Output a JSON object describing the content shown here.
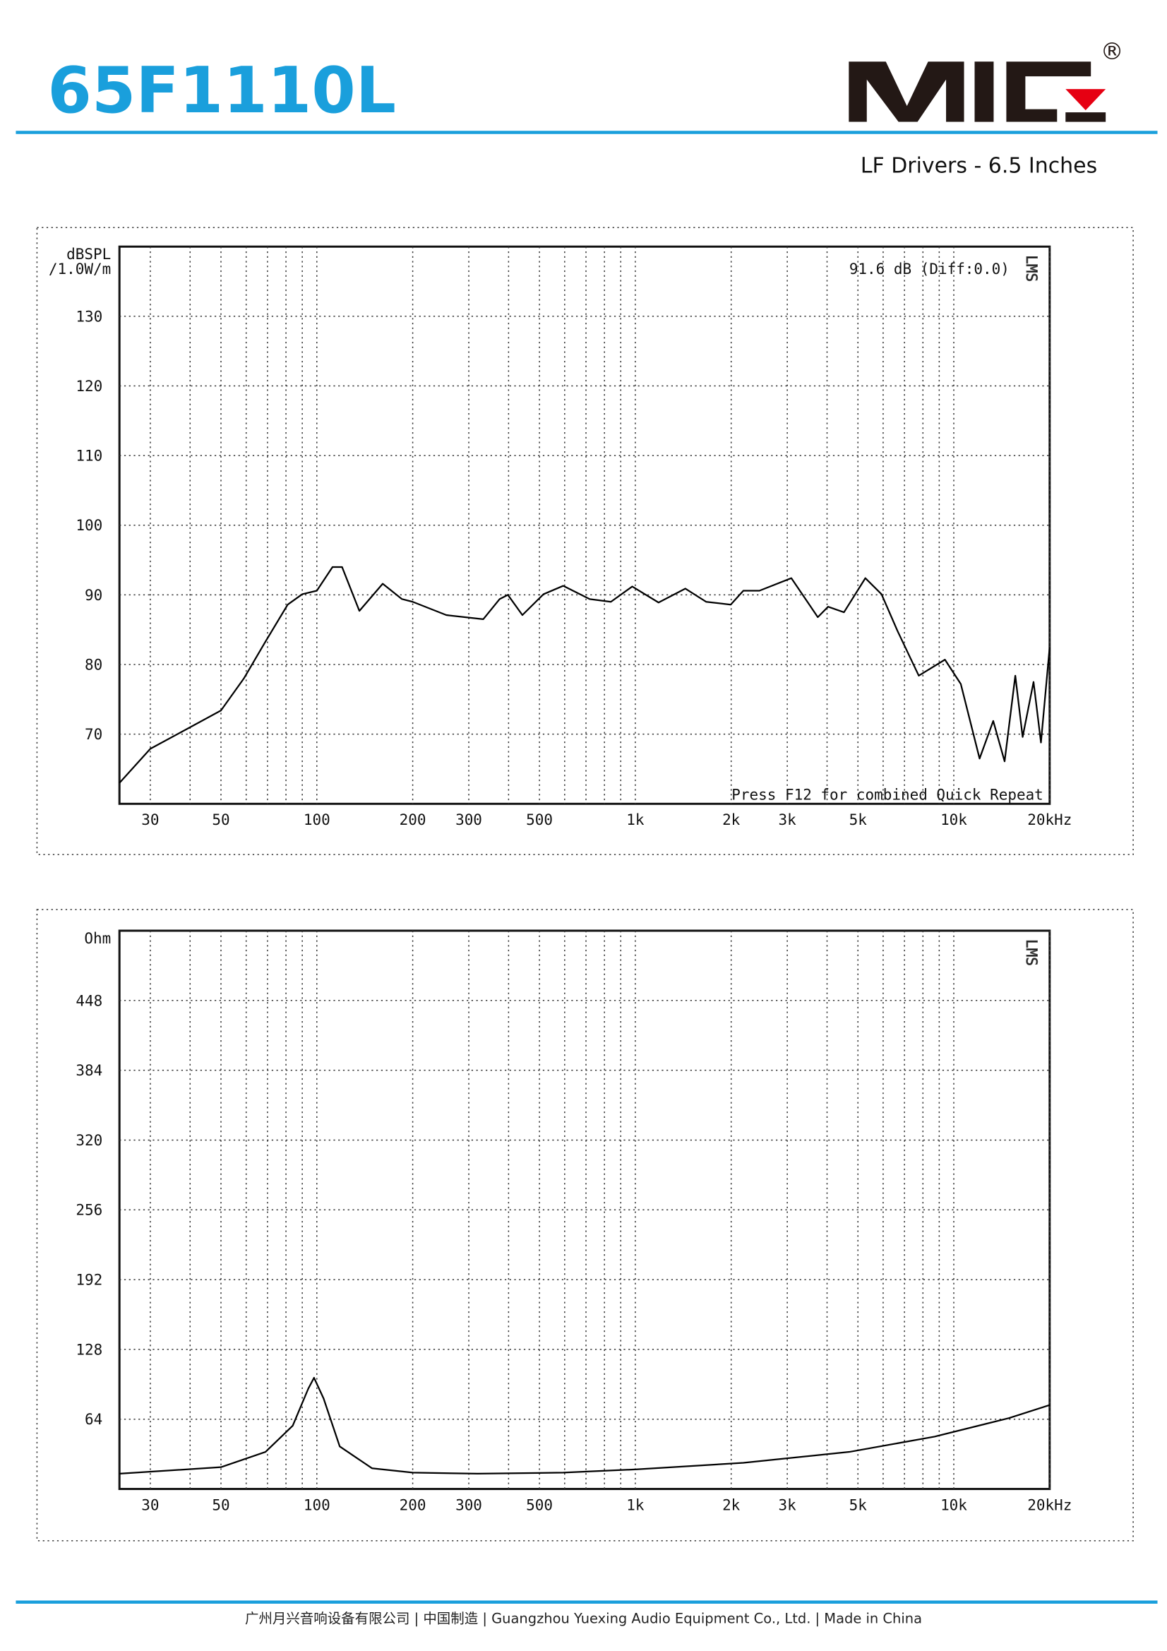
{
  "header": {
    "title": "65F1110L",
    "registered": "®",
    "subtitle": "LF Drivers - 6.5 Inches"
  },
  "footer": "广州月兴音响设备有限公司 | 中国制造 | Guangzhou Yuexing Audio Equipment Co., Ltd. | Made in China",
  "chart_data": [
    {
      "type": "line",
      "log_x": true,
      "grid": true,
      "color": "#000000",
      "y_unit": [
        "dBSPL",
        "/1.0W/m"
      ],
      "watermark": "LMS",
      "annotations": [
        "91.6 dB (Diff:0.0)",
        "Press F12 for combined Quick Repeat"
      ],
      "xlim": [
        24,
        20000
      ],
      "ylim": [
        60,
        140
      ],
      "xticks": [
        30,
        50,
        100,
        200,
        300,
        500,
        {
          "value": 1000,
          "label": "1k"
        },
        {
          "value": 2000,
          "label": "2k"
        },
        {
          "value": 3000,
          "label": "3k"
        },
        {
          "value": 5000,
          "label": "5k"
        },
        {
          "value": 10000,
          "label": "10k"
        },
        {
          "value": 20000,
          "label": "20kHz"
        }
      ],
      "minor_xticks": [
        40,
        60,
        70,
        80,
        90,
        400,
        600,
        700,
        800,
        900,
        4000,
        6000,
        7000,
        8000,
        9000
      ],
      "yticks": [
        70,
        80,
        90,
        100,
        110,
        120,
        130
      ],
      "x": [
        24,
        30,
        37.5,
        50,
        59,
        69,
        81,
        90,
        100,
        112,
        120,
        136,
        161,
        185,
        200,
        255,
        333,
        375,
        398,
        442,
        515,
        594,
        719,
        838,
        978,
        1183,
        1436,
        1670,
        1993,
        2184,
        2453,
        3090,
        3741,
        4030,
        4520,
        5275,
        5930,
        6660,
        7763,
        9380,
        10520,
        12050,
        13300,
        14440,
        15600,
        16450,
        17800,
        18780,
        20000
      ],
      "values": [
        63.0,
        67.9,
        70.3,
        73.4,
        78.0,
        83.3,
        88.6,
        90.1,
        90.6,
        94.0,
        94.0,
        87.7,
        91.6,
        89.4,
        89.0,
        87.1,
        86.5,
        89.4,
        90.0,
        87.1,
        90.1,
        91.3,
        89.4,
        89.0,
        91.2,
        88.9,
        90.9,
        89.0,
        88.6,
        90.6,
        90.6,
        92.4,
        86.8,
        88.3,
        87.5,
        92.4,
        90.1,
        84.8,
        78.4,
        80.7,
        77.2,
        66.5,
        71.9,
        66.1,
        78.4,
        69.6,
        77.5,
        68.8,
        82.5
      ]
    },
    {
      "type": "line",
      "log_x": true,
      "grid": true,
      "color": "#000000",
      "y_unit": [
        "Ohm"
      ],
      "watermark": "LMS",
      "xlim": [
        24,
        20000
      ],
      "ylim": [
        0,
        512
      ],
      "xticks": [
        30,
        50,
        100,
        200,
        300,
        500,
        {
          "value": 1000,
          "label": "1k"
        },
        {
          "value": 2000,
          "label": "2k"
        },
        {
          "value": 3000,
          "label": "3k"
        },
        {
          "value": 5000,
          "label": "5k"
        },
        {
          "value": 10000,
          "label": "10k"
        },
        {
          "value": 20000,
          "label": "20kHz"
        }
      ],
      "minor_xticks": [
        40,
        60,
        70,
        80,
        90,
        400,
        600,
        700,
        800,
        900,
        4000,
        6000,
        7000,
        8000,
        9000
      ],
      "yticks": [
        64,
        128,
        192,
        256,
        320,
        384,
        448
      ],
      "x": [
        24,
        50,
        69,
        84,
        94,
        98,
        105,
        118,
        149,
        200,
        320,
        594,
        1010,
        2184,
        4700,
        8700,
        14900,
        20000
      ],
      "values": [
        14,
        20,
        34,
        58,
        92,
        102,
        83,
        39,
        19,
        15,
        14,
        15,
        18,
        24,
        34,
        48,
        65,
        77
      ]
    }
  ]
}
